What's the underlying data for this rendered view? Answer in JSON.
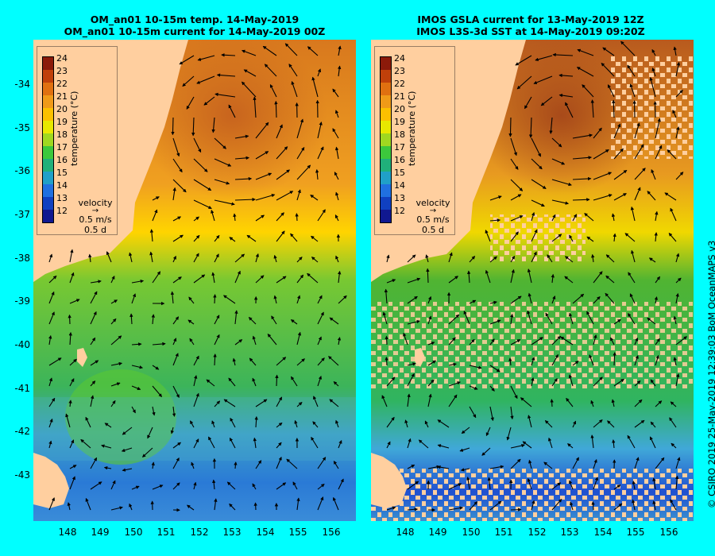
{
  "left_panel": {
    "title_line1": "OM_an01 10-15m temp. 14-May-2019",
    "title_line2": "OM_an01 10-15m current for 14-May-2019 00Z"
  },
  "right_panel": {
    "title_line1": "IMOS GSLA current for 13-May-2019 12Z",
    "title_line2": "IMOS L3S-3d SST at 14-May-2019 09:20Z"
  },
  "legend": {
    "colorbar_labels": [
      "24",
      "23",
      "22",
      "21",
      "20",
      "19",
      "18",
      "17",
      "16",
      "15",
      "14",
      "13",
      "12"
    ],
    "units_label": "temperature (°C)",
    "velocity_title": "velocity",
    "velocity_speed": "0.5 m/s",
    "velocity_time": "0.5 d"
  },
  "axes": {
    "lat_ticks": [
      "-34",
      "-35",
      "-36",
      "-37",
      "-38",
      "-39",
      "-40",
      "-41",
      "-42",
      "-43"
    ],
    "lon_ticks": [
      "148",
      "149",
      "150",
      "151",
      "152",
      "153",
      "154",
      "155",
      "156"
    ]
  },
  "credit": "© CSIRO 2019   25-May-2019 12:39:03 BoM OceanMAPS v3",
  "colors": {
    "background": "#00ffff",
    "land": "#ffcf9f",
    "warm": "#d2691e",
    "mid": "#ffd400",
    "cool": "#32b432",
    "cold": "#2a7ad6"
  }
}
